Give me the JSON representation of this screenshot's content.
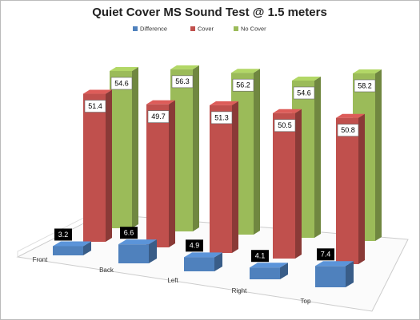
{
  "chart_data": {
    "type": "bar3d",
    "title": "Quiet Cover MS Sound Test @ 1.5 meters",
    "categories": [
      "Front",
      "Back",
      "Left",
      "Right",
      "Top"
    ],
    "series": [
      {
        "name": "Difference",
        "color": "#4f81bd",
        "values": [
          3.2,
          6.6,
          4.9,
          4.1,
          7.4
        ]
      },
      {
        "name": "Cover",
        "color": "#c0504d",
        "values": [
          51.4,
          49.7,
          51.3,
          50.5,
          50.8
        ]
      },
      {
        "name": "No Cover",
        "color": "#9bbb59",
        "values": [
          54.6,
          56.3,
          56.2,
          54.6,
          58.2
        ]
      }
    ]
  }
}
